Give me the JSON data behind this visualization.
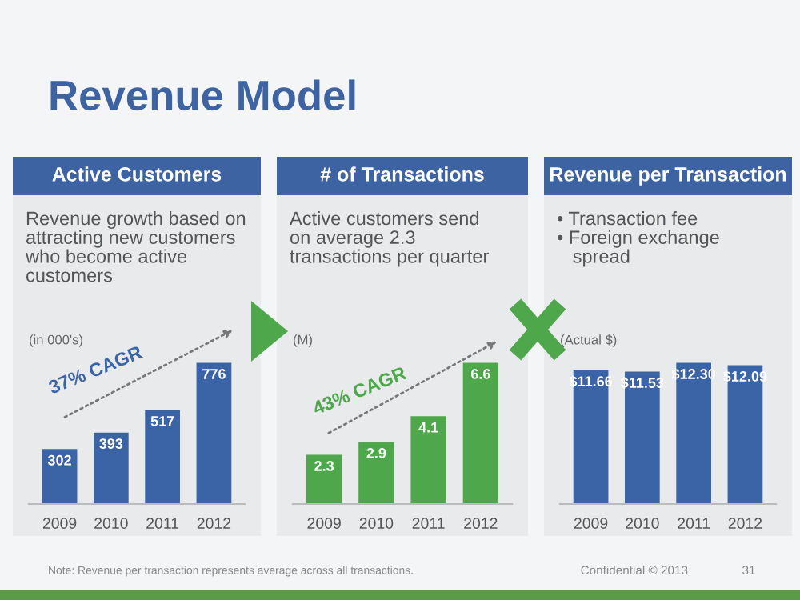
{
  "chart_data": [
    {
      "type": "bar",
      "title": "Active Customers",
      "categories": [
        "2009",
        "2010",
        "2011",
        "2012"
      ],
      "values": [
        302,
        393,
        517,
        776
      ],
      "color": "#3b64a6",
      "data_labels": true,
      "tick_labels": "x",
      "annotations": [
        "Revenue growth based on\nattracting new customers\nwho become active\ncustomers",
        "(in 000's)",
        "37% CAGR",
        "Revenue Model",
        "Note: Revenue per transaction represents average across all transactions."
      ]
    },
    {
      "type": "bar",
      "title": "# of Transactions",
      "categories": [
        "2009",
        "2010",
        "2011",
        "2012"
      ],
      "values": [
        2.3,
        2.9,
        4.1,
        6.6
      ],
      "color": "#4ea74a",
      "data_labels": true,
      "tick_labels": "x",
      "annotations": [
        "Active customers send\non average 2.3\ntransactions per quarter",
        "(M)",
        "43% CAGR"
      ]
    },
    {
      "type": "bar",
      "title": "Revenue per Transaction",
      "categories": [
        "2009",
        "2010",
        "2011",
        "2012"
      ],
      "values": [
        11.66,
        11.53,
        12.3,
        12.09
      ],
      "value_labels": [
        "$11.66",
        "$11.53",
        "$12.30",
        "$12.09"
      ],
      "color": "#3b64a6",
      "tick_labels": "x",
      "annotations": [
        "• Transaction fee\n• Foreign exchange\n   spread",
        "(Actual $)",
        "Confidential © 2013",
        "31"
      ]
    }
  ]
}
